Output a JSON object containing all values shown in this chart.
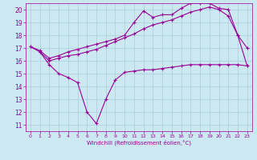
{
  "bg_color": "#cce8f0",
  "grid_color": "#aaccdd",
  "line_color": "#990099",
  "xlabel": "Windchill (Refroidissement éolien,°C)",
  "xlim": [
    -0.5,
    23.5
  ],
  "ylim": [
    10.5,
    20.5
  ],
  "yticks": [
    11,
    12,
    13,
    14,
    15,
    16,
    17,
    18,
    19,
    20
  ],
  "xticks": [
    0,
    1,
    2,
    3,
    4,
    5,
    6,
    7,
    8,
    9,
    10,
    11,
    12,
    13,
    14,
    15,
    16,
    17,
    18,
    19,
    20,
    21,
    22,
    23
  ],
  "line1": {
    "x": [
      0,
      1,
      2,
      3,
      4,
      5,
      6,
      7,
      8,
      9,
      10,
      11,
      12,
      13,
      14,
      15,
      16,
      17,
      18,
      19,
      20,
      21,
      22,
      23
    ],
    "y": [
      17.1,
      16.7,
      15.7,
      15.0,
      14.7,
      14.3,
      12.0,
      11.1,
      13.0,
      14.5,
      15.1,
      15.2,
      15.3,
      15.3,
      15.4,
      15.5,
      15.6,
      15.7,
      15.7,
      15.7,
      15.7,
      15.7,
      15.7,
      15.6
    ]
  },
  "line2": {
    "x": [
      1,
      2,
      3,
      4,
      5,
      6,
      7,
      8,
      9,
      10,
      11,
      12,
      13,
      14,
      15,
      16,
      17,
      18,
      19,
      20,
      21,
      22,
      23
    ],
    "y": [
      16.7,
      16.0,
      16.2,
      16.4,
      16.5,
      16.7,
      16.9,
      17.2,
      17.5,
      17.8,
      18.1,
      18.5,
      18.8,
      19.0,
      19.2,
      19.5,
      19.8,
      20.0,
      20.2,
      20.0,
      19.5,
      18.0,
      15.6
    ]
  },
  "line3": {
    "x": [
      0,
      1,
      2,
      3,
      4,
      5,
      6,
      7,
      8,
      9,
      10,
      11,
      12,
      13,
      14,
      15,
      16,
      17,
      18,
      19,
      20,
      21,
      22,
      23
    ],
    "y": [
      17.1,
      16.8,
      16.2,
      16.4,
      16.7,
      16.9,
      17.1,
      17.3,
      17.5,
      17.7,
      18.0,
      19.0,
      19.9,
      19.4,
      19.6,
      19.6,
      20.1,
      20.5,
      20.5,
      20.5,
      20.1,
      20.0,
      18.0,
      17.0
    ]
  }
}
